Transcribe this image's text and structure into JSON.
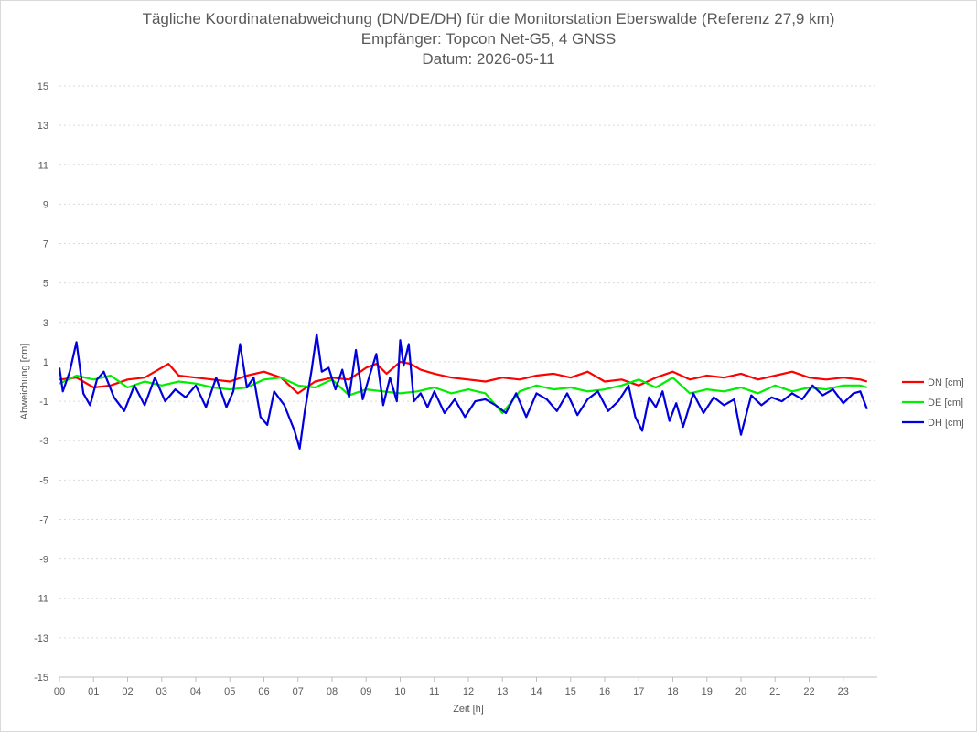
{
  "chart_data": {
    "type": "line",
    "title": "Tägliche Koordinatenabweichung (DN/DE/DH) für die Monitorstation Eberswalde (Referenz 27,9 km)",
    "subtitle": "Empfänger: Topcon Net-G5, 4 GNSS",
    "date_line": "Datum: 2026-05-11",
    "xlabel": "Zeit [h]",
    "ylabel": "Abweichung [cm]",
    "xlim": [
      0,
      24
    ],
    "ylim": [
      -15,
      15
    ],
    "x_ticks": [
      "00",
      "01",
      "02",
      "03",
      "04",
      "05",
      "06",
      "07",
      "08",
      "09",
      "10",
      "11",
      "12",
      "13",
      "14",
      "15",
      "16",
      "17",
      "18",
      "19",
      "20",
      "21",
      "22",
      "23"
    ],
    "y_ticks": [
      15,
      13,
      11,
      9,
      7,
      5,
      3,
      1,
      -1,
      -3,
      -5,
      -7,
      -9,
      -11,
      -13,
      -15
    ],
    "grid": true,
    "legend_position": "right",
    "series": [
      {
        "name": "DN [cm]",
        "color": "#ff0000",
        "x": [
          0.0,
          0.5,
          1.0,
          1.5,
          2.0,
          2.5,
          2.9,
          3.2,
          3.5,
          4.0,
          4.5,
          5.0,
          5.5,
          6.0,
          6.5,
          7.0,
          7.5,
          8.0,
          8.5,
          9.0,
          9.3,
          9.6,
          10.0,
          10.3,
          10.6,
          11.0,
          11.5,
          12.0,
          12.5,
          13.0,
          13.5,
          14.0,
          14.5,
          15.0,
          15.5,
          16.0,
          16.5,
          17.0,
          17.5,
          18.0,
          18.5,
          19.0,
          19.5,
          20.0,
          20.5,
          21.0,
          21.5,
          22.0,
          22.5,
          23.0,
          23.5,
          23.7
        ],
        "values": [
          0.1,
          0.2,
          -0.3,
          -0.2,
          0.1,
          0.2,
          0.6,
          0.9,
          0.3,
          0.2,
          0.1,
          0.0,
          0.3,
          0.5,
          0.2,
          -0.6,
          0.0,
          0.2,
          0.1,
          0.7,
          0.9,
          0.4,
          1.0,
          0.9,
          0.6,
          0.4,
          0.2,
          0.1,
          0.0,
          0.2,
          0.1,
          0.3,
          0.4,
          0.2,
          0.5,
          0.0,
          0.1,
          -0.2,
          0.2,
          0.5,
          0.1,
          0.3,
          0.2,
          0.4,
          0.1,
          0.3,
          0.5,
          0.2,
          0.1,
          0.2,
          0.1,
          0.0
        ]
      },
      {
        "name": "DE [cm]",
        "color": "#00ee00",
        "x": [
          0.0,
          0.5,
          1.0,
          1.5,
          2.0,
          2.5,
          3.0,
          3.5,
          4.0,
          4.5,
          5.0,
          5.5,
          6.0,
          6.5,
          7.0,
          7.5,
          8.0,
          8.5,
          9.0,
          9.5,
          10.0,
          10.5,
          11.0,
          11.5,
          12.0,
          12.5,
          13.0,
          13.5,
          14.0,
          14.5,
          15.0,
          15.5,
          16.0,
          16.5,
          17.0,
          17.5,
          18.0,
          18.5,
          19.0,
          19.5,
          20.0,
          20.5,
          21.0,
          21.5,
          22.0,
          22.5,
          23.0,
          23.5,
          23.7
        ],
        "values": [
          -0.1,
          0.3,
          0.1,
          0.3,
          -0.3,
          0.0,
          -0.2,
          0.0,
          -0.1,
          -0.3,
          -0.4,
          -0.3,
          0.1,
          0.2,
          -0.2,
          -0.3,
          0.1,
          -0.7,
          -0.4,
          -0.5,
          -0.6,
          -0.5,
          -0.3,
          -0.6,
          -0.4,
          -0.6,
          -1.6,
          -0.5,
          -0.2,
          -0.4,
          -0.3,
          -0.5,
          -0.4,
          -0.2,
          0.1,
          -0.3,
          0.2,
          -0.6,
          -0.4,
          -0.5,
          -0.3,
          -0.6,
          -0.2,
          -0.5,
          -0.3,
          -0.4,
          -0.2,
          -0.2,
          -0.3
        ]
      },
      {
        "name": "DH [cm]",
        "color": "#0000dd",
        "x": [
          0.0,
          0.1,
          0.3,
          0.5,
          0.7,
          0.9,
          1.1,
          1.3,
          1.6,
          1.9,
          2.2,
          2.5,
          2.8,
          3.1,
          3.4,
          3.7,
          4.0,
          4.3,
          4.6,
          4.9,
          5.1,
          5.3,
          5.5,
          5.7,
          5.9,
          6.1,
          6.3,
          6.6,
          6.9,
          7.05,
          7.2,
          7.4,
          7.55,
          7.7,
          7.9,
          8.1,
          8.3,
          8.5,
          8.7,
          8.9,
          9.1,
          9.3,
          9.5,
          9.7,
          9.9,
          10.0,
          10.1,
          10.25,
          10.4,
          10.6,
          10.8,
          11.0,
          11.3,
          11.6,
          11.9,
          12.2,
          12.5,
          12.8,
          13.1,
          13.4,
          13.7,
          14.0,
          14.3,
          14.6,
          14.9,
          15.2,
          15.5,
          15.8,
          16.1,
          16.4,
          16.7,
          16.9,
          17.1,
          17.3,
          17.5,
          17.7,
          17.9,
          18.1,
          18.3,
          18.6,
          18.9,
          19.2,
          19.5,
          19.8,
          20.0,
          20.3,
          20.6,
          20.9,
          21.2,
          21.5,
          21.8,
          22.1,
          22.4,
          22.7,
          23.0,
          23.3,
          23.5,
          23.7
        ],
        "values": [
          0.7,
          -0.5,
          0.5,
          2.0,
          -0.6,
          -1.2,
          0.1,
          0.5,
          -0.8,
          -1.5,
          -0.2,
          -1.2,
          0.2,
          -1.0,
          -0.4,
          -0.8,
          -0.2,
          -1.3,
          0.2,
          -1.3,
          -0.5,
          1.9,
          -0.3,
          0.2,
          -1.8,
          -2.2,
          -0.5,
          -1.2,
          -2.5,
          -3.4,
          -1.5,
          0.6,
          2.4,
          0.5,
          0.7,
          -0.4,
          0.6,
          -0.8,
          1.6,
          -0.9,
          0.3,
          1.4,
          -1.2,
          0.2,
          -1.0,
          2.1,
          0.8,
          1.9,
          -1.0,
          -0.6,
          -1.3,
          -0.5,
          -1.6,
          -0.9,
          -1.8,
          -1.0,
          -0.9,
          -1.2,
          -1.6,
          -0.6,
          -1.8,
          -0.6,
          -0.9,
          -1.5,
          -0.6,
          -1.7,
          -0.9,
          -0.5,
          -1.5,
          -1.0,
          -0.2,
          -1.8,
          -2.5,
          -0.8,
          -1.3,
          -0.5,
          -2.0,
          -1.1,
          -2.3,
          -0.6,
          -1.6,
          -0.8,
          -1.2,
          -0.9,
          -2.7,
          -0.7,
          -1.2,
          -0.8,
          -1.0,
          -0.6,
          -0.9,
          -0.2,
          -0.7,
          -0.4,
          -1.1,
          -0.6,
          -0.5,
          -1.4
        ]
      }
    ]
  }
}
